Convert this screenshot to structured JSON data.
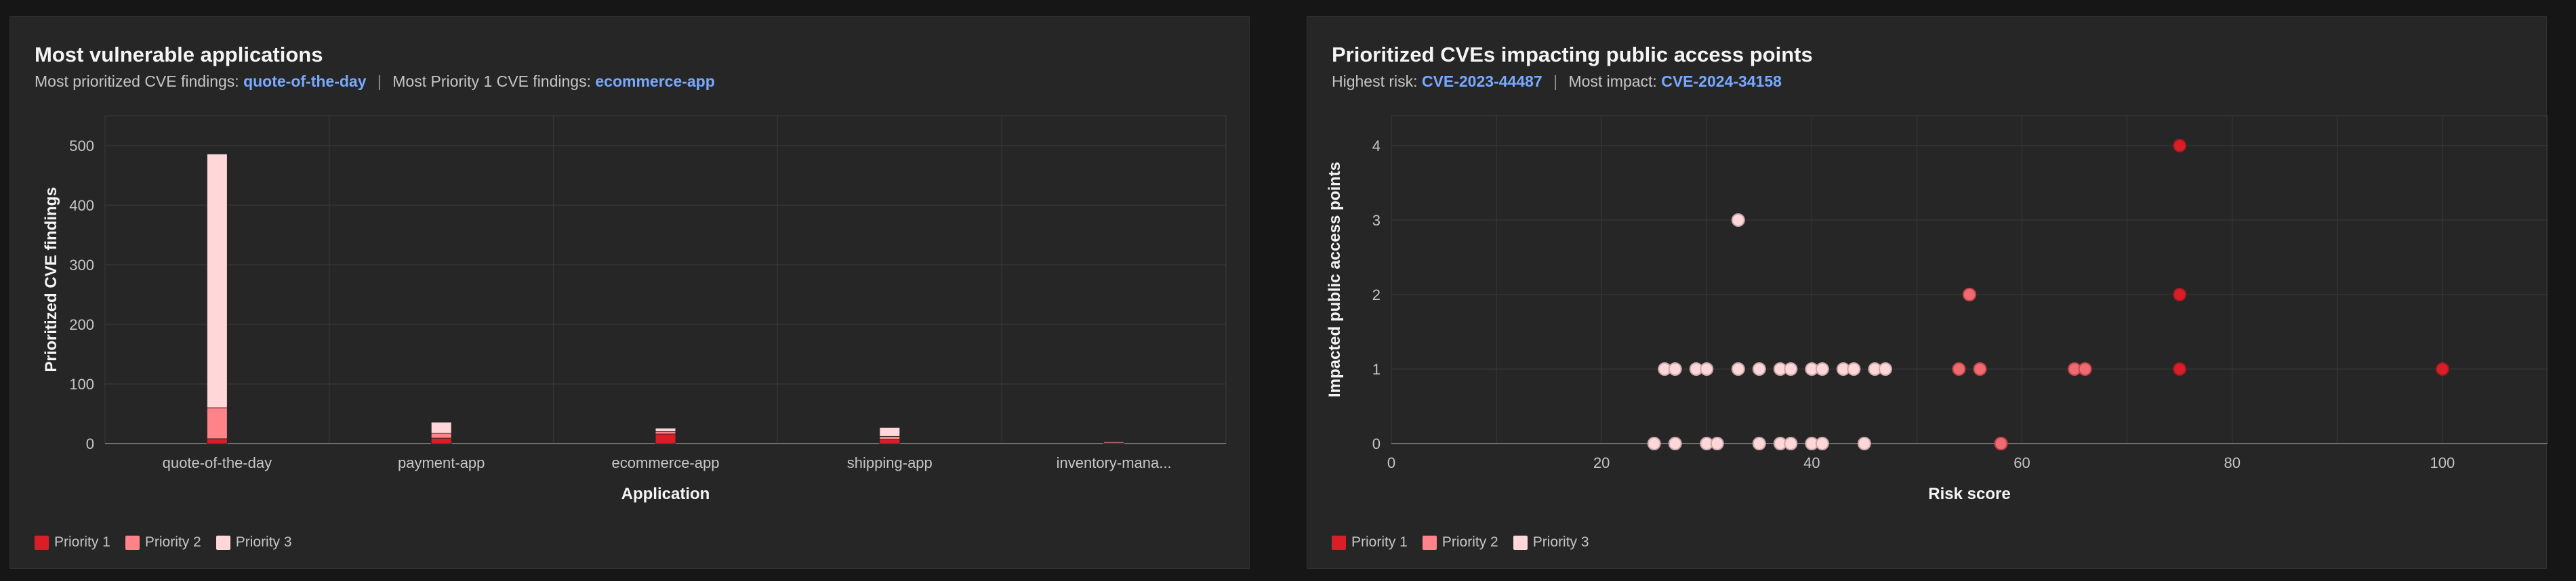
{
  "panels": {
    "left": {
      "title": "Most vulnerable applications",
      "subtitle_prefix_1": "Most prioritized CVE findings:",
      "subtitle_link_1": "quote-of-the-day",
      "subtitle_sep": "|",
      "subtitle_prefix_2": "Most Priority 1 CVE findings:",
      "subtitle_link_2": "ecommerce-app",
      "legend": [
        "Priority 1",
        "Priority 2",
        "Priority 3"
      ]
    },
    "right": {
      "title": "Prioritized CVEs impacting public access points",
      "subtitle_prefix_1": "Highest risk:",
      "subtitle_link_1": "CVE-2023-44487",
      "subtitle_sep": "|",
      "subtitle_prefix_2": "Most impact:",
      "subtitle_link_2": "CVE-2024-34158",
      "legend": [
        "Priority 1",
        "Priority 2",
        "Priority 3"
      ]
    }
  },
  "colors": {
    "priority_1": "#da1e28",
    "priority_2": "#ff8389",
    "priority_3": "#ffd7d9",
    "link": "#78a9ff",
    "grid": "#393939",
    "axis": "#6f6f6f"
  },
  "chart_data": [
    {
      "type": "bar",
      "stacked": true,
      "title": "Most vulnerable applications",
      "xlabel": "Application",
      "ylabel": "Prioritized CVE findings",
      "categories": [
        "quote-of-the-day",
        "payment-app",
        "ecommerce-app",
        "shipping-app",
        "inventory-mana..."
      ],
      "ylim": [
        0,
        550
      ],
      "yticks": [
        0,
        100,
        200,
        300,
        400,
        500
      ],
      "series": [
        {
          "name": "Priority 1",
          "values": [
            8,
            9,
            16,
            7,
            1
          ]
        },
        {
          "name": "Priority 2",
          "values": [
            52,
            8,
            4,
            5,
            2
          ]
        },
        {
          "name": "Priority 3",
          "values": [
            426,
            19,
            6,
            15,
            0
          ]
        }
      ],
      "grid": true,
      "legend_position": "bottom-left"
    },
    {
      "type": "scatter",
      "title": "Prioritized CVEs impacting public access points",
      "xlabel": "Risk score",
      "ylabel": "Impacted public access points",
      "xlim": [
        0,
        110
      ],
      "ylim": [
        0,
        4.4
      ],
      "xticks": [
        0,
        20,
        40,
        60,
        80,
        100
      ],
      "yticks": [
        0,
        1,
        2,
        3,
        4
      ],
      "series": [
        {
          "name": "Priority 1",
          "points": [
            [
              75,
              4
            ],
            [
              75,
              2
            ],
            [
              75,
              1
            ],
            [
              100,
              1
            ]
          ]
        },
        {
          "name": "Priority 2",
          "points": [
            [
              55,
              2
            ],
            [
              54,
              1
            ],
            [
              56,
              1
            ],
            [
              65,
              1
            ],
            [
              66,
              1
            ],
            [
              58,
              0
            ]
          ]
        },
        {
          "name": "Priority 3",
          "points": [
            [
              33,
              3
            ],
            [
              26,
              1
            ],
            [
              27,
              1
            ],
            [
              29,
              1
            ],
            [
              30,
              1
            ],
            [
              33,
              1
            ],
            [
              35,
              1
            ],
            [
              37,
              1
            ],
            [
              38,
              1
            ],
            [
              40,
              1
            ],
            [
              41,
              1
            ],
            [
              43,
              1
            ],
            [
              44,
              1
            ],
            [
              46,
              1
            ],
            [
              47,
              1
            ],
            [
              25,
              0
            ],
            [
              27,
              0
            ],
            [
              30,
              0
            ],
            [
              31,
              0
            ],
            [
              35,
              0
            ],
            [
              37,
              0
            ],
            [
              38,
              0
            ],
            [
              40,
              0
            ],
            [
              41,
              0
            ],
            [
              45,
              0
            ]
          ]
        }
      ],
      "grid": true,
      "legend_position": "bottom-left"
    }
  ]
}
